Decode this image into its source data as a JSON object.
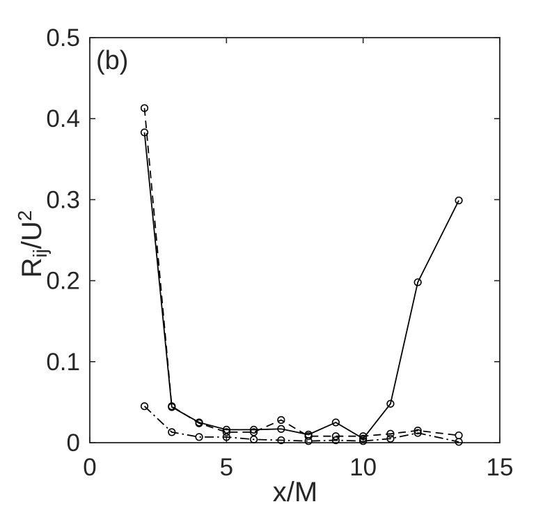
{
  "figure": {
    "background_color": "#ffffff",
    "axis_color": "#262626",
    "data_color": "#000000"
  },
  "chart_data": {
    "type": "line",
    "title": "",
    "panel_label": "(b)",
    "xlabel": "x/M",
    "ylabel": "R_ij/U^2",
    "ylabel_parts": {
      "base": "R",
      "subscript": "ij",
      "middle": "/U",
      "superscript": "2"
    },
    "xlim": [
      0,
      15
    ],
    "ylim": [
      0,
      0.5
    ],
    "x_ticks": [
      0,
      5,
      10,
      15
    ],
    "y_ticks": [
      0,
      0.1,
      0.2,
      0.3,
      0.4,
      0.5
    ],
    "x_tick_labels": [
      "0",
      "5",
      "10",
      "15"
    ],
    "y_tick_labels": [
      "0",
      "0.1",
      "0.2",
      "0.3",
      "0.4",
      "0.5"
    ],
    "grid": false,
    "legend": null,
    "box": true,
    "tick_direction": "in",
    "x": [
      2,
      3,
      4,
      5,
      6,
      7,
      8,
      9,
      10,
      11,
      12,
      13.5
    ],
    "series": [
      {
        "name": "solid-circles",
        "line_style": "solid",
        "marker": "circle",
        "values": [
          0.383,
          0.044,
          0.025,
          0.016,
          0.016,
          0.017,
          0.01,
          0.025,
          0.005,
          0.048,
          0.198,
          0.299
        ]
      },
      {
        "name": "dashed-circles",
        "line_style": "dashed",
        "marker": "circle",
        "values": [
          0.413,
          0.045,
          0.024,
          0.013,
          0.013,
          0.028,
          0.008,
          0.008,
          0.008,
          0.011,
          0.015,
          0.009
        ]
      },
      {
        "name": "dash-dot-circles",
        "line_style": "dash-dot",
        "marker": "circle",
        "values": [
          0.045,
          0.013,
          0.007,
          0.007,
          0.004,
          0.003,
          0.002,
          0.003,
          0.002,
          0.005,
          0.012,
          0.001
        ]
      }
    ]
  }
}
